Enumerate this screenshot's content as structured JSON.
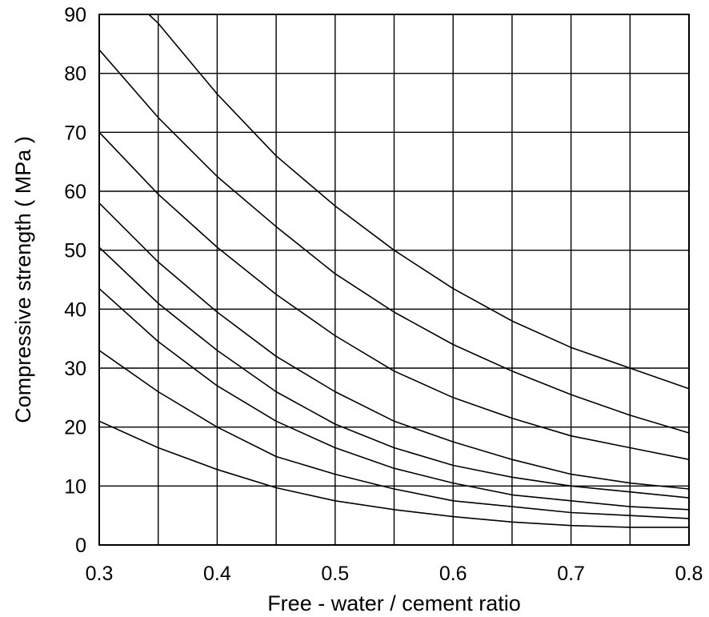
{
  "chart_data": {
    "type": "line",
    "title": "",
    "xlabel": "Free - water / cement ratio",
    "ylabel": "Compressive  strength  ( MPa )",
    "xlim": [
      0.3,
      0.8
    ],
    "ylim": [
      0,
      90
    ],
    "xticks": [
      "0.3",
      "0.4",
      "0.5",
      "0.6",
      "0.7",
      "0.8"
    ],
    "yticks": [
      "0",
      "10",
      "20",
      "30",
      "40",
      "50",
      "60",
      "70",
      "80",
      "90"
    ],
    "grid": true,
    "legend": "none",
    "line_color": "#000000",
    "series": [
      {
        "x": [
          0.342,
          0.35,
          0.4,
          0.45,
          0.5,
          0.55,
          0.6,
          0.65,
          0.7,
          0.75,
          0.8
        ],
        "y": [
          90,
          88.5,
          76.5,
          66,
          57.5,
          50,
          43.5,
          38,
          33.5,
          30,
          26.5
        ]
      },
      {
        "x": [
          0.3,
          0.35,
          0.4,
          0.45,
          0.5,
          0.55,
          0.6,
          0.65,
          0.7,
          0.75,
          0.8
        ],
        "y": [
          84,
          72.5,
          62.5,
          54,
          46,
          39.5,
          34,
          29.5,
          25.5,
          22,
          19
        ]
      },
      {
        "x": [
          0.3,
          0.35,
          0.4,
          0.45,
          0.5,
          0.55,
          0.6,
          0.65,
          0.7,
          0.75,
          0.8
        ],
        "y": [
          70,
          59.5,
          50.5,
          42.5,
          35.5,
          29.5,
          25,
          21.5,
          18.5,
          16.5,
          14.5
        ]
      },
      {
        "x": [
          0.3,
          0.35,
          0.4,
          0.45,
          0.5,
          0.55,
          0.6,
          0.65,
          0.7,
          0.75,
          0.8
        ],
        "y": [
          58,
          48,
          39.5,
          32,
          26,
          21,
          17.5,
          14.5,
          12,
          10.5,
          9.5
        ]
      },
      {
        "x": [
          0.3,
          0.35,
          0.4,
          0.45,
          0.5,
          0.55,
          0.6,
          0.65,
          0.7,
          0.75,
          0.8
        ],
        "y": [
          50.5,
          41,
          33,
          26,
          20.5,
          16.5,
          13.5,
          11.5,
          10,
          9,
          8
        ]
      },
      {
        "x": [
          0.3,
          0.35,
          0.4,
          0.45,
          0.5,
          0.55,
          0.6,
          0.65,
          0.7,
          0.75,
          0.8
        ],
        "y": [
          43.5,
          34.5,
          27,
          21,
          16.5,
          13,
          10.5,
          8.5,
          7.5,
          6.5,
          6
        ]
      },
      {
        "x": [
          0.3,
          0.35,
          0.4,
          0.45,
          0.5,
          0.55,
          0.6,
          0.65,
          0.7,
          0.75,
          0.8
        ],
        "y": [
          33,
          26,
          20,
          15,
          12,
          9.5,
          7.5,
          6.5,
          5.5,
          5,
          4.5
        ]
      },
      {
        "x": [
          0.3,
          0.35,
          0.4,
          0.45,
          0.5,
          0.55,
          0.6,
          0.65,
          0.7,
          0.75,
          0.8
        ],
        "y": [
          21,
          16.5,
          12.8,
          9.7,
          7.5,
          6,
          4.8,
          3.9,
          3.3,
          3,
          3
        ]
      }
    ]
  }
}
